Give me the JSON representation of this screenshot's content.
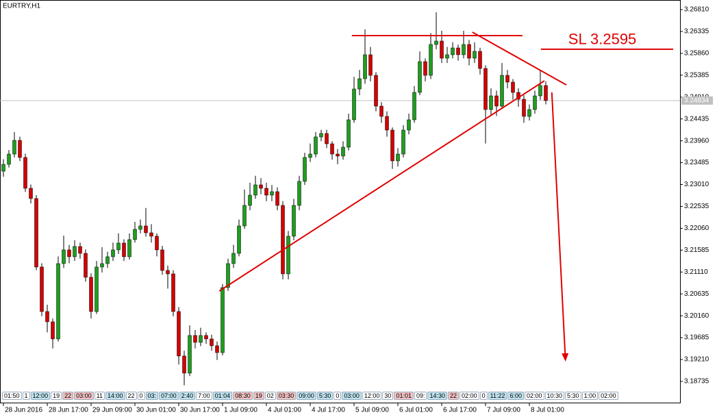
{
  "chart_data": {
    "type": "candlestick",
    "title": "EURTRY,H1",
    "xlim": [
      -0.625,
      123.5
    ],
    "xticks": [
      {
        "value": 0,
        "label": "28 Jun 2016"
      },
      {
        "value": 8,
        "label": "28 Jun 17:00"
      },
      {
        "value": 16,
        "label": "29 Jun 09:00"
      },
      {
        "value": 24,
        "label": "30 Jun 01:00"
      },
      {
        "value": 32,
        "label": "30 Jun 17:00"
      },
      {
        "value": 40,
        "label": "1 Jul 09:00"
      },
      {
        "value": 48,
        "label": "4 Jul 01:00"
      },
      {
        "value": 56,
        "label": "4 Jul 17:00"
      },
      {
        "value": 64,
        "label": "5 Jul 09:00"
      },
      {
        "value": 72,
        "label": "6 Jul 01:00"
      },
      {
        "value": 80,
        "label": "6 Jul 17:00"
      },
      {
        "value": 88,
        "label": "7 Jul 09:00"
      },
      {
        "value": 96,
        "label": "8 Jul 01:00"
      }
    ],
    "ylim": [
      3.18571,
      3.27018
    ],
    "yticks": [
      {
        "value": 3.2681,
        "label": "3.26810"
      },
      3.26335,
      {
        "value": 3.2586,
        "label": "3.25860"
      },
      3.25385,
      {
        "value": 3.2491,
        "label": "3.24910"
      },
      3.24435,
      {
        "value": 3.2396,
        "label": "3.23960"
      },
      3.23485,
      {
        "value": 3.2301,
        "label": "3.23010"
      },
      3.22535,
      {
        "value": 3.2206,
        "label": "3.22060"
      },
      3.21585,
      {
        "value": 3.2111,
        "label": "3.21110"
      },
      3.20635,
      {
        "value": 3.2016,
        "label": "3.20160"
      },
      3.19685,
      {
        "value": 3.1921,
        "label": "3.19210"
      },
      3.18735
    ],
    "grid": false,
    "up_color": "#1f9e1f",
    "down_color": "#d40000",
    "wick_color": "#000000",
    "open": [
      3.233,
      3.23449,
      3.23672,
      3.2397,
      3.23598,
      3.22929,
      3.22706,
      3.21219,
      3.20252,
      3.20029,
      3.19657,
      3.21293,
      3.21591,
      3.21442,
      3.21665,
      3.21516,
      3.20996,
      3.20252,
      3.21219,
      3.21293,
      3.21442,
      3.21591,
      3.21739,
      3.21442,
      3.21814,
      3.22037,
      3.22111,
      3.21962,
      3.21888,
      3.21591,
      3.21144,
      3.2107,
      3.20252,
      3.19286,
      3.18914,
      3.19732,
      3.19583,
      3.19732,
      3.19657,
      3.19509,
      3.1936,
      3.20773,
      3.21293,
      3.21516,
      3.22111,
      3.22557,
      3.2278,
      3.23003,
      3.22929,
      3.2278,
      3.22855,
      3.22557,
      3.2107,
      3.21888,
      3.22557,
      3.23078,
      3.23598,
      3.23672,
      3.24044,
      3.24119,
      3.23895,
      3.23672,
      3.23628,
      3.23821,
      3.24416,
      3.25085,
      3.25308,
      3.25829,
      3.25382,
      3.24713,
      3.2449,
      3.24193,
      3.23524,
      3.23672,
      3.24193,
      3.24416,
      3.25011,
      3.2568,
      3.25382,
      3.26052,
      3.26126,
      3.25754,
      3.25829,
      3.25977,
      3.25829,
      3.26052,
      3.25754,
      3.25903,
      3.25531,
      3.24639,
      3.24936,
      3.24713,
      3.25382,
      3.25234,
      3.25011,
      3.24862,
      3.2449,
      3.24639,
      3.24936,
      3.2516
    ],
    "high": [
      3.2356,
      3.2376,
      3.2415,
      3.2405,
      3.2368,
      3.2301,
      3.2278,
      3.213,
      3.204,
      3.201,
      3.2145,
      3.219,
      3.217,
      3.218,
      3.2175,
      3.216,
      3.2108,
      3.2135,
      3.2165,
      3.2155,
      3.2175,
      3.2195,
      3.2182,
      3.2195,
      3.222,
      3.2225,
      3.225,
      3.2215,
      3.2195,
      3.2168,
      3.2125,
      3.2115,
      3.2035,
      3.194,
      3.1995,
      3.1985,
      3.199,
      3.198,
      3.1975,
      3.196,
      3.2085,
      3.214,
      3.217,
      3.2225,
      3.229,
      3.2305,
      3.232,
      3.2315,
      3.2305,
      3.23,
      3.2295,
      3.2265,
      3.22,
      3.227,
      3.232,
      3.237,
      3.239,
      3.2415,
      3.242,
      3.242,
      3.2395,
      3.2378,
      3.2395,
      3.2455,
      3.2535,
      3.255,
      3.2638,
      3.26,
      3.2545,
      3.248,
      3.246,
      3.2425,
      3.238,
      3.243,
      3.2455,
      3.2515,
      3.259,
      3.2575,
      3.263,
      3.2675,
      3.2635,
      3.26,
      3.261,
      3.2605,
      3.2635,
      3.2615,
      3.261,
      3.2598,
      3.256,
      3.251,
      3.2505,
      3.2565,
      3.255,
      3.253,
      3.251,
      3.2495,
      3.2475,
      3.2505,
      3.255,
      3.2525
    ],
    "low": [
      3.2318,
      3.2338,
      3.236,
      3.2352,
      3.2285,
      3.226,
      3.2115,
      3.2015,
      3.198,
      3.1945,
      3.196,
      3.212,
      3.213,
      3.2135,
      3.214,
      3.209,
      3.201,
      3.202,
      3.211,
      3.212,
      3.2135,
      3.215,
      3.2135,
      3.2138,
      3.2175,
      3.2195,
      3.2188,
      3.2175,
      3.2145,
      3.2105,
      3.2075,
      3.2015,
      3.191,
      3.1865,
      3.1885,
      3.1945,
      3.195,
      3.1955,
      3.194,
      3.192,
      3.193,
      3.207,
      3.212,
      3.2145,
      3.2205,
      3.2245,
      3.227,
      3.228,
      3.2265,
      3.2265,
      3.2245,
      3.2095,
      3.2095,
      3.218,
      3.2245,
      3.23,
      3.235,
      3.236,
      3.2395,
      3.238,
      3.2355,
      3.2345,
      3.2355,
      3.2375,
      3.2435,
      3.2495,
      3.252,
      3.2525,
      3.246,
      3.2435,
      3.2405,
      3.2335,
      3.234,
      3.236,
      3.241,
      3.2435,
      3.2495,
      3.2525,
      3.253,
      3.2595,
      3.2565,
      3.2565,
      3.2575,
      3.257,
      3.2575,
      3.256,
      3.2565,
      3.254,
      3.239,
      3.245,
      3.245,
      3.2465,
      3.251,
      3.2485,
      3.247,
      3.2435,
      3.244,
      3.2455,
      3.2485,
      3.2475
    ],
    "close": [
      3.23449,
      3.23672,
      3.2397,
      3.23598,
      3.22929,
      3.22706,
      3.21219,
      3.20252,
      3.20029,
      3.19657,
      3.21293,
      3.21591,
      3.21442,
      3.21665,
      3.21516,
      3.20996,
      3.20252,
      3.21219,
      3.21293,
      3.21442,
      3.21591,
      3.21739,
      3.21442,
      3.21814,
      3.22037,
      3.22111,
      3.21962,
      3.21888,
      3.21591,
      3.21144,
      3.2107,
      3.20252,
      3.19286,
      3.18914,
      3.19732,
      3.19583,
      3.19732,
      3.19657,
      3.19509,
      3.1936,
      3.20773,
      3.21293,
      3.21516,
      3.22111,
      3.22557,
      3.2278,
      3.23003,
      3.22929,
      3.2278,
      3.22855,
      3.22557,
      3.2107,
      3.21888,
      3.22557,
      3.23078,
      3.23598,
      3.23672,
      3.24044,
      3.24119,
      3.23895,
      3.23672,
      3.23628,
      3.23821,
      3.24416,
      3.25085,
      3.25308,
      3.25829,
      3.25382,
      3.24713,
      3.2449,
      3.24193,
      3.23524,
      3.23672,
      3.24193,
      3.24416,
      3.25011,
      3.2568,
      3.25382,
      3.26052,
      3.26126,
      3.25754,
      3.25829,
      3.25977,
      3.25829,
      3.26052,
      3.25754,
      3.25903,
      3.25531,
      3.24639,
      3.24936,
      3.24713,
      3.25382,
      3.25234,
      3.25011,
      3.24862,
      3.2449,
      3.24639,
      3.24936,
      3.2516,
      3.24834
    ],
    "current_price": 3.24834,
    "current_price_color": "#c0c0c0",
    "drawings": [
      {
        "kind": "segment",
        "color": "#e00000",
        "points": [
          [
            63.6,
            3.26245
          ],
          [
            94.75,
            3.26245
          ]
        ]
      },
      {
        "kind": "segment",
        "color": "#e00000",
        "label": "SL 3.2595",
        "points": [
          [
            98.1,
            3.2595
          ],
          [
            122.25,
            3.2595
          ]
        ]
      },
      {
        "kind": "segment",
        "color": "#e00000",
        "points": [
          [
            39.4,
            3.20698
          ],
          [
            98.75,
            3.25263
          ]
        ]
      },
      {
        "kind": "segment",
        "color": "#e00000",
        "points": [
          [
            85.6,
            3.26319
          ],
          [
            102.75,
            3.25174
          ]
        ]
      },
      {
        "kind": "arrow",
        "color": "#e00000",
        "points": [
          [
            100.1,
            3.25011
          ],
          [
            102.6,
            3.19166
          ]
        ]
      }
    ]
  },
  "time_tags": [
    {
      "text": "01:50",
      "bg": "#ffffff"
    },
    {
      "text": "1",
      "bg": "#ffffff"
    },
    {
      "text": "12:00",
      "bg": "#bfe3ef"
    },
    {
      "text": "19",
      "bg": "#ffffff"
    },
    {
      "text": "22",
      "bg": "#f4c2c2"
    },
    {
      "text": "03:00",
      "bg": "#f4c2c2"
    },
    {
      "text": "11",
      "bg": "#ffffff"
    },
    {
      "text": "14:00",
      "bg": "#bfe3ef"
    },
    {
      "text": "22",
      "bg": "#ffffff"
    },
    {
      "text": "0",
      "bg": "#ffffff"
    },
    {
      "text": "03:",
      "bg": "#bfe3ef"
    },
    {
      "text": "07:00",
      "bg": "#bfe3ef"
    },
    {
      "text": "2:40",
      "bg": "#bfe3ef"
    },
    {
      "text": "7:00",
      "bg": "#ffffff"
    },
    {
      "text": "01:04",
      "bg": "#bfe3ef"
    },
    {
      "text": "08:30",
      "bg": "#f4c2c2"
    },
    {
      "text": "19",
      "bg": "#f4c2c2"
    },
    {
      "text": "02",
      "bg": "#ffffff"
    },
    {
      "text": "03:30",
      "bg": "#f4c2c2"
    },
    {
      "text": "09:00",
      "bg": "#bfe3ef"
    },
    {
      "text": "5:30",
      "bg": "#bfe3ef"
    },
    {
      "text": "0",
      "bg": "#ffffff"
    },
    {
      "text": "03:00",
      "bg": "#bfe3ef"
    },
    {
      "text": "12:00",
      "bg": "#ffffff"
    },
    {
      "text": "30",
      "bg": "#ffffff"
    },
    {
      "text": "01:01",
      "bg": "#f4c2c2"
    },
    {
      "text": "09:",
      "bg": "#ffffff"
    },
    {
      "text": "14:30",
      "bg": "#bfe3ef"
    },
    {
      "text": "22",
      "bg": "#f4c2c2"
    },
    {
      "text": "02:00",
      "bg": "#ffffff"
    },
    {
      "text": "0",
      "bg": "#ffffff"
    },
    {
      "text": "11:22",
      "bg": "#bfe3ef"
    },
    {
      "text": "6:00",
      "bg": "#bfe3ef"
    },
    {
      "text": "02:00",
      "bg": "#ffffff"
    },
    {
      "text": "10:30",
      "bg": "#ffffff"
    },
    {
      "text": "5:30",
      "bg": "#ffffff"
    },
    {
      "text": "1:00",
      "bg": "#ffffff"
    },
    {
      "text": "02:00",
      "bg": "#ffffff"
    }
  ]
}
